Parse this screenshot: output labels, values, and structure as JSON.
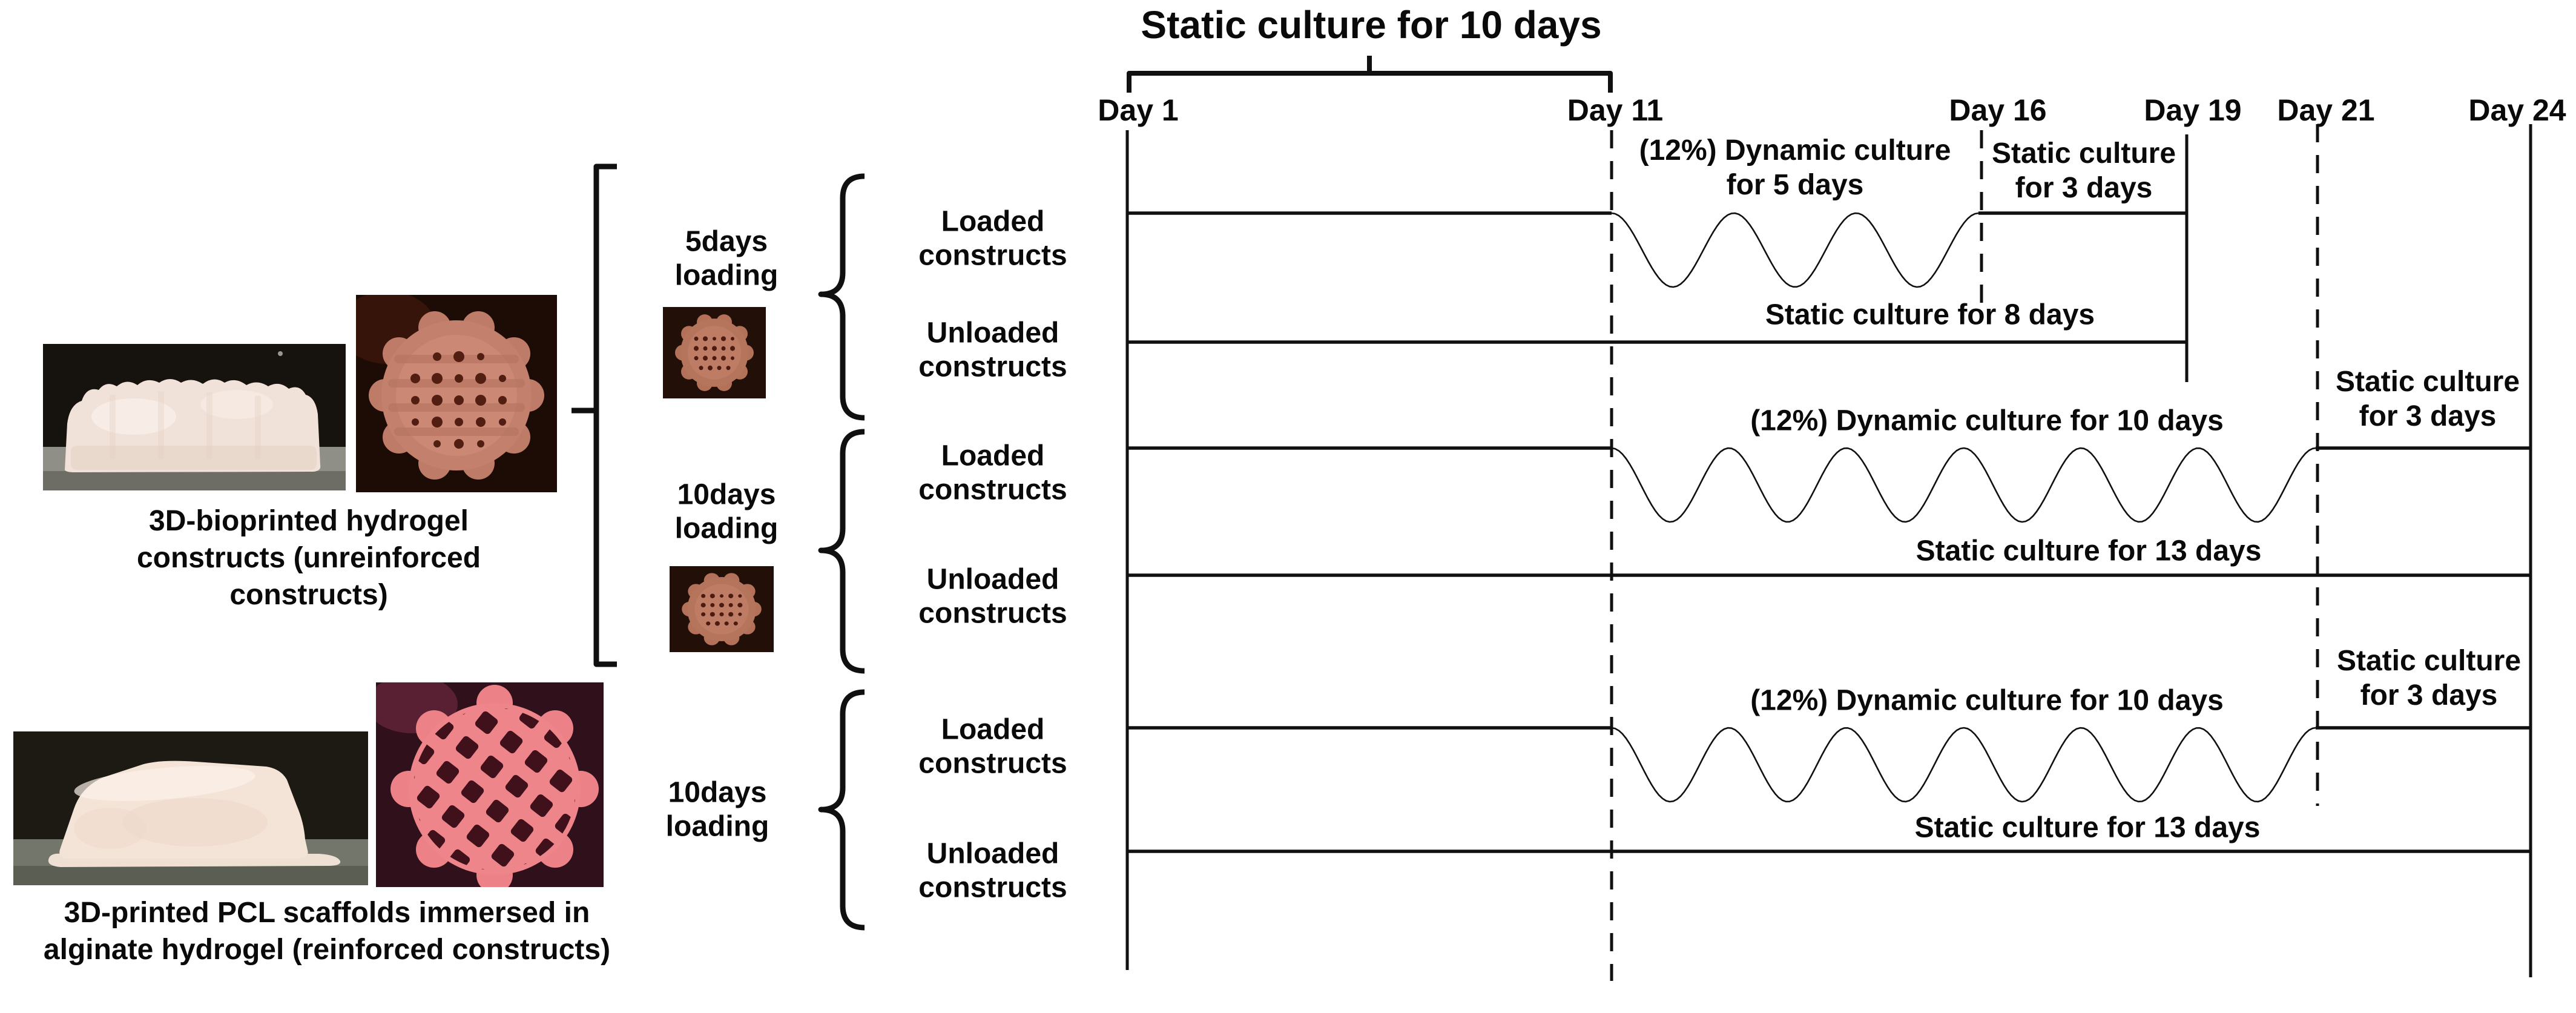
{
  "colors": {
    "stroke": "#101010",
    "unreinforced_scaffold_pink": "#c3806d",
    "reinforced_scaffold_pink": "#ee858b"
  },
  "title": "Static culture for 10 days",
  "day_markers": [
    {
      "label": "Day 1"
    },
    {
      "label": "Day 11"
    },
    {
      "label": "Day 16"
    },
    {
      "label": "Day 19"
    },
    {
      "label": "Day 21"
    },
    {
      "label": "Day 24"
    }
  ],
  "specimens": [
    {
      "caption": "3D-bioprinted hydrogel constructs (unreinforced constructs)"
    },
    {
      "caption": "3D-printed PCL scaffolds immersed in alginate hydrogel (reinforced constructs)"
    }
  ],
  "groups": [
    {
      "label": "5days loading",
      "rows": [
        {
          "label": "Loaded constructs",
          "phases": [
            "(12%) Dynamic culture for 5 days",
            "Static culture for 3 days"
          ]
        },
        {
          "label": "Unloaded constructs",
          "phases": [
            "Static culture for 8 days"
          ]
        }
      ]
    },
    {
      "label": "10days loading",
      "rows": [
        {
          "label": "Loaded constructs",
          "phases": [
            "(12%) Dynamic culture for 10 days",
            "Static culture for 3 days"
          ]
        },
        {
          "label": "Unloaded constructs",
          "phases": [
            "Static culture for 13 days"
          ]
        }
      ]
    },
    {
      "label": "10days loading",
      "rows": [
        {
          "label": "Loaded constructs",
          "phases": [
            "(12%) Dynamic culture for 10 days",
            "Static culture for 3 days"
          ]
        },
        {
          "label": "Unloaded constructs",
          "phases": [
            "Static culture for 13 days"
          ]
        }
      ]
    }
  ]
}
